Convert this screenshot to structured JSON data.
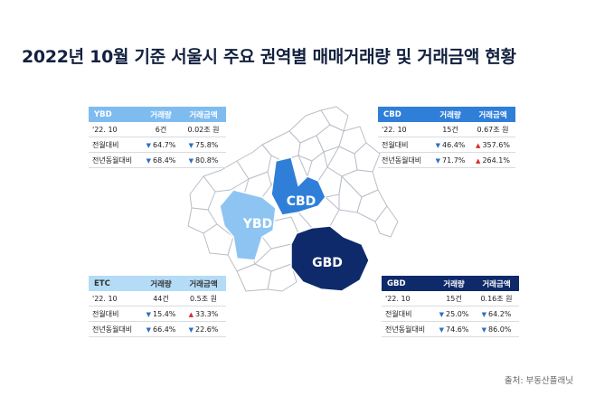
{
  "title": "2022년 10월 기준 서울시 주요 권역별 매매거래량 및 거래금액 현황",
  "map": {
    "regions": [
      {
        "name": "YBD",
        "color": "#8ec4f2"
      },
      {
        "name": "CBD",
        "color": "#2f7fd8"
      },
      {
        "name": "GBD",
        "color": "#0e2a6b"
      }
    ],
    "outline_color": "#b9bec7"
  },
  "headers": {
    "volume": "거래량",
    "amount": "거래금액"
  },
  "tables": {
    "ybd": {
      "name": "YBD",
      "rows": [
        {
          "label": "'22. 10",
          "volume": "6건",
          "amount": "0.02조 원"
        },
        {
          "label": "전월대비",
          "volume": "64.7%",
          "volume_dir": "down",
          "amount": "75.8%",
          "amount_dir": "down"
        },
        {
          "label": "전년동월대비",
          "volume": "68.4%",
          "volume_dir": "down",
          "amount": "80.8%",
          "amount_dir": "down"
        }
      ]
    },
    "cbd": {
      "name": "CBD",
      "rows": [
        {
          "label": "'22. 10",
          "volume": "15건",
          "amount": "0.67조 원"
        },
        {
          "label": "전월대비",
          "volume": "46.4%",
          "volume_dir": "down",
          "amount": "357.6%",
          "amount_dir": "up"
        },
        {
          "label": "전년동월대비",
          "volume": "71.7%",
          "volume_dir": "down",
          "amount": "264.1%",
          "amount_dir": "up"
        }
      ]
    },
    "etc": {
      "name": "ETC",
      "rows": [
        {
          "label": "'22. 10",
          "volume": "44건",
          "amount": "0.5조 원"
        },
        {
          "label": "전월대비",
          "volume": "15.4%",
          "volume_dir": "down",
          "amount": "33.3%",
          "amount_dir": "up"
        },
        {
          "label": "전년동월대비",
          "volume": "66.4%",
          "volume_dir": "down",
          "amount": "22.6%",
          "amount_dir": "down"
        }
      ]
    },
    "gbd": {
      "name": "GBD",
      "rows": [
        {
          "label": "'22. 10",
          "volume": "15건",
          "amount": "0.16조 원"
        },
        {
          "label": "전월대비",
          "volume": "25.0%",
          "volume_dir": "down",
          "amount": "64.2%",
          "amount_dir": "down"
        },
        {
          "label": "전년동월대비",
          "volume": "74.6%",
          "volume_dir": "down",
          "amount": "86.0%",
          "amount_dir": "down"
        }
      ]
    }
  },
  "source": "출처: 부동산플래닛"
}
